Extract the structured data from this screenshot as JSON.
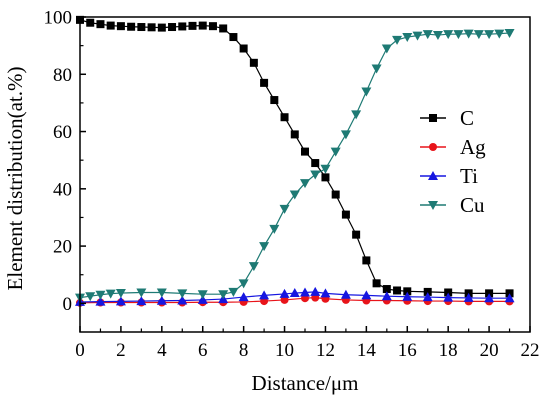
{
  "chart_data": {
    "type": "scatter",
    "xlabel": "Distance/μm",
    "ylabel": "Element distribution(at.%)",
    "xlim": [
      0,
      22
    ],
    "ylim": [
      -10,
      100
    ],
    "xticks": [
      "0",
      "2",
      "4",
      "6",
      "8",
      "10",
      "12",
      "14",
      "16",
      "18",
      "20",
      "22"
    ],
    "yticks": [
      "0",
      "20",
      "40",
      "60",
      "80",
      "100"
    ],
    "grid": false,
    "legend_position": "right",
    "series": [
      {
        "name": "C",
        "color": "#000000",
        "marker": "square",
        "points": [
          [
            0,
            99
          ],
          [
            0.5,
            98
          ],
          [
            1,
            97.5
          ],
          [
            1.5,
            97
          ],
          [
            2,
            96.8
          ],
          [
            2.5,
            96.6
          ],
          [
            3,
            96.5
          ],
          [
            3.5,
            96.4
          ],
          [
            4,
            96.3
          ],
          [
            4.5,
            96.5
          ],
          [
            5,
            96.7
          ],
          [
            5.5,
            96.9
          ],
          [
            6,
            97
          ],
          [
            6.5,
            96.8
          ],
          [
            7,
            96
          ],
          [
            7.5,
            93
          ],
          [
            8,
            89
          ],
          [
            8.5,
            84
          ],
          [
            9,
            77
          ],
          [
            9.5,
            71
          ],
          [
            10,
            65
          ],
          [
            10.5,
            59
          ],
          [
            11,
            53
          ],
          [
            11.5,
            49
          ],
          [
            12,
            44
          ],
          [
            12.5,
            38
          ],
          [
            13,
            31
          ],
          [
            13.5,
            24
          ],
          [
            14,
            15
          ],
          [
            14.5,
            7
          ],
          [
            15,
            5
          ],
          [
            15.5,
            4.5
          ],
          [
            16,
            4.2
          ],
          [
            17,
            4
          ],
          [
            18,
            3.8
          ],
          [
            19,
            3.5
          ],
          [
            20,
            3.5
          ],
          [
            21,
            3.5
          ]
        ]
      },
      {
        "name": "Ag",
        "color": "#e8141a",
        "marker": "circle",
        "points": [
          [
            0,
            0.2
          ],
          [
            1,
            0.3
          ],
          [
            2,
            0.3
          ],
          [
            3,
            0.3
          ],
          [
            4,
            0.3
          ],
          [
            5,
            0.3
          ],
          [
            6,
            0.4
          ],
          [
            7,
            0.4
          ],
          [
            8,
            0.5
          ],
          [
            9,
            0.8
          ],
          [
            10,
            1.2
          ],
          [
            11,
            1.8
          ],
          [
            11.5,
            2
          ],
          [
            12,
            1.6
          ],
          [
            13,
            1.2
          ],
          [
            14,
            1
          ],
          [
            15,
            1
          ],
          [
            16,
            0.9
          ],
          [
            17,
            0.8
          ],
          [
            18,
            0.8
          ],
          [
            19,
            0.7
          ],
          [
            20,
            0.7
          ],
          [
            21,
            0.7
          ]
        ]
      },
      {
        "name": "Ti",
        "color": "#1616e0",
        "marker": "triangle-up",
        "points": [
          [
            0,
            0.5
          ],
          [
            1,
            0.6
          ],
          [
            2,
            0.7
          ],
          [
            3,
            0.8
          ],
          [
            4,
            0.9
          ],
          [
            5,
            1
          ],
          [
            6,
            1.2
          ],
          [
            7,
            1.5
          ],
          [
            8,
            2.2
          ],
          [
            9,
            2.8
          ],
          [
            10,
            3.3
          ],
          [
            10.5,
            3.6
          ],
          [
            11,
            3.8
          ],
          [
            11.5,
            4
          ],
          [
            12,
            3.5
          ],
          [
            13,
            3
          ],
          [
            14,
            2.8
          ],
          [
            15,
            2.5
          ],
          [
            16,
            2.3
          ],
          [
            17,
            2.2
          ],
          [
            18,
            2
          ],
          [
            19,
            1.9
          ],
          [
            20,
            1.8
          ],
          [
            21,
            1.8
          ]
        ]
      },
      {
        "name": "Cu",
        "color": "#1e7a74",
        "marker": "triangle-down",
        "points": [
          [
            0,
            2
          ],
          [
            0.5,
            2.5
          ],
          [
            1,
            3
          ],
          [
            1.5,
            3.4
          ],
          [
            2,
            3.6
          ],
          [
            3,
            3.8
          ],
          [
            4,
            3.8
          ],
          [
            5,
            3.5
          ],
          [
            6,
            3.2
          ],
          [
            7,
            3.2
          ],
          [
            7.5,
            4
          ],
          [
            8,
            7
          ],
          [
            8.5,
            13
          ],
          [
            9,
            20
          ],
          [
            9.5,
            26
          ],
          [
            10,
            33
          ],
          [
            10.5,
            38
          ],
          [
            11,
            42
          ],
          [
            11.5,
            45
          ],
          [
            12,
            47
          ],
          [
            12.5,
            53
          ],
          [
            13,
            59
          ],
          [
            13.5,
            66
          ],
          [
            14,
            74
          ],
          [
            14.5,
            82
          ],
          [
            15,
            89
          ],
          [
            15.5,
            92
          ],
          [
            16,
            93
          ],
          [
            16.5,
            93.5
          ],
          [
            17,
            94
          ],
          [
            17.5,
            93.7
          ],
          [
            18,
            94
          ],
          [
            18.5,
            94
          ],
          [
            19,
            94.2
          ],
          [
            19.5,
            94
          ],
          [
            20,
            94
          ],
          [
            20.5,
            94.2
          ],
          [
            21,
            94.4
          ]
        ]
      }
    ]
  }
}
